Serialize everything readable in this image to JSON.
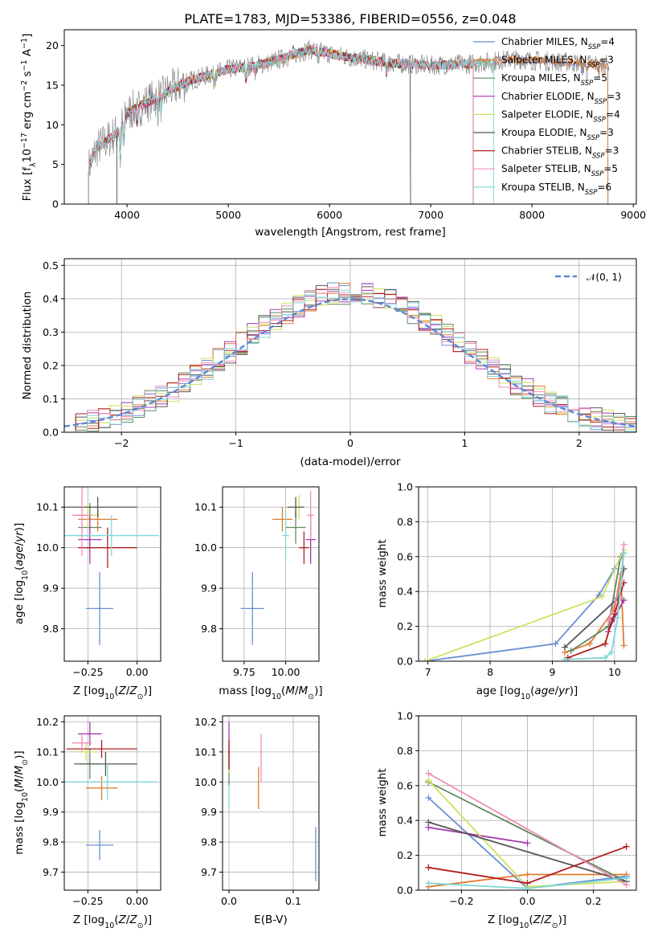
{
  "colors": [
    "#6b8fd6",
    "#e07b2e",
    "#5f8a5f",
    "#a838b0",
    "#cde35e",
    "#565656",
    "#b11e1e",
    "#f08cb8",
    "#7fd6d6"
  ],
  "figure_title": "PLATE=1783, MJD=53386, FIBERID=0556, z=0.048",
  "chart_data": [
    {
      "panel": "spectrum",
      "type": "line",
      "title": "PLATE=1783, MJD=53386, FIBERID=0556, z=0.048",
      "xlabel": "wavelength [Angstrom, rest frame]",
      "ylabel": "Flux [fλ10⁻¹⁷ erg cm⁻² s⁻¹ A⁻¹]",
      "xlim": [
        3380,
        9030
      ],
      "ylim": [
        0,
        22
      ],
      "xticks": [
        "4000",
        "5000",
        "6000",
        "7000",
        "8000",
        "9000"
      ],
      "yticks": [
        "0",
        "5",
        "10",
        "15",
        "20"
      ],
      "legend": [
        "Chabrier MILES, NSSP=4",
        "Salpeter MILES, NSSP=3",
        "Kroupa MILES, NSSP=5",
        "Chabrier ELODIE, NSSP=3",
        "Salpeter ELODIE, NSSP=4",
        "Kroupa ELODIE, NSSP=3",
        "Chabrier STELIB, NSSP=3",
        "Salpeter STELIB, NSSP=5",
        "Kroupa STELIB, NSSP=6"
      ],
      "legend_placement": "right",
      "continuum": {
        "x": [
          3600,
          3700,
          3900,
          4000,
          4300,
          4600,
          5000,
          5400,
          5800,
          6200,
          6600,
          7000,
          7400,
          7800,
          8200,
          8700
        ],
        "y": [
          4,
          7,
          9,
          11.5,
          13.5,
          15.5,
          17,
          17.8,
          19.5,
          18.5,
          17.8,
          17.5,
          17.7,
          18.3,
          18,
          17.6
        ]
      },
      "model_extents": [
        [
          3620,
          8750
        ],
        [
          3620,
          8750
        ],
        [
          3620,
          7420
        ],
        [
          3900,
          6800
        ],
        [
          3900,
          6800
        ],
        [
          3900,
          6800
        ],
        [
          3620,
          7420
        ],
        [
          3620,
          7420
        ],
        [
          3620,
          7620
        ]
      ]
    },
    {
      "panel": "residual-histogram",
      "type": "line",
      "xlabel": "(data-model)/error",
      "ylabel": "Normed distribution",
      "xlim": [
        -2.5,
        2.5
      ],
      "ylim": [
        0,
        0.52
      ],
      "xticks": [
        "−2",
        "−1",
        "0",
        "1",
        "2"
      ],
      "yticks": [
        "0.0",
        "0.1",
        "0.2",
        "0.3",
        "0.4",
        "0.5"
      ],
      "legend": [
        "𝒩(0, 1)"
      ],
      "legend_placement": "top-right",
      "bin_width": 0.1,
      "reference_curve": "normal(0,1) pdf, peak 0.40"
    },
    {
      "panel": "age-vs-Z",
      "type": "scatter",
      "xlabel": "Z [log10(Z/Z⊙)]",
      "ylabel": "age  [log10(age/yr)]",
      "xlim": [
        -0.37,
        0.12
      ],
      "ylim": [
        9.72,
        10.15
      ],
      "xticks": [
        "−0.25",
        "0.00"
      ],
      "yticks": [
        "9.8",
        "9.9",
        "10.0",
        "10.1"
      ],
      "points": [
        {
          "x": -0.19,
          "y": 9.85,
          "xerr": 0.07,
          "yerr": 0.09
        },
        {
          "x": -0.2,
          "y": 10.07,
          "xerr": 0.1,
          "yerr": 0.03
        },
        {
          "x": -0.24,
          "y": 10.05,
          "xerr": 0.06,
          "yerr": 0.06
        },
        {
          "x": -0.24,
          "y": 10.02,
          "xerr": 0.06,
          "yerr": 0.06
        },
        {
          "x": -0.25,
          "y": 10.08,
          "xerr": 0.06,
          "yerr": 0.03
        },
        {
          "x": -0.2,
          "y": 10.1,
          "xerr": 0.2,
          "yerr": 0.025
        },
        {
          "x": -0.15,
          "y": 10.0,
          "xerr": 0.15,
          "yerr": 0.05
        },
        {
          "x": -0.28,
          "y": 10.08,
          "xerr": 0.05,
          "yerr": 0.1
        },
        {
          "x": -0.13,
          "y": 10.03,
          "xerr": 0.24,
          "yerr": 0.05
        }
      ]
    },
    {
      "panel": "age-vs-mass",
      "type": "scatter",
      "xlabel": "mass [log10(M/M⊙)]",
      "ylabel": "",
      "xlim": [
        9.62,
        10.2
      ],
      "ylim": [
        9.72,
        10.15
      ],
      "xticks": [
        "9.75",
        "10.00"
      ],
      "yticks": [
        "9.8",
        "9.9",
        "10.0",
        "10.1"
      ],
      "points": [
        {
          "x": 9.8,
          "y": 9.85,
          "xerr": 0.07,
          "yerr": 0.09
        },
        {
          "x": 9.98,
          "y": 10.07,
          "xerr": 0.06,
          "yerr": 0.03
        },
        {
          "x": 10.06,
          "y": 10.05,
          "xerr": 0.06,
          "yerr": 0.04
        },
        {
          "x": 10.15,
          "y": 10.02,
          "xerr": 0.03,
          "yerr": 0.06
        },
        {
          "x": 10.08,
          "y": 10.1,
          "xerr": 0.03,
          "yerr": 0.03
        },
        {
          "x": 10.06,
          "y": 10.1,
          "xerr": 0.05,
          "yerr": 0.025
        },
        {
          "x": 10.11,
          "y": 10.0,
          "xerr": 0.03,
          "yerr": 0.04
        },
        {
          "x": 10.15,
          "y": 10.08,
          "xerr": 0.02,
          "yerr": 0.06
        },
        {
          "x": 10.0,
          "y": 10.03,
          "xerr": 0.02,
          "yerr": 0.06
        }
      ]
    },
    {
      "panel": "weight-vs-age",
      "type": "line",
      "xlabel": "age  [log10(age/yr)]",
      "ylabel": "mass weight",
      "xlim": [
        6.85,
        10.35
      ],
      "ylim": [
        0,
        1
      ],
      "xticks": [
        "7",
        "8",
        "9",
        "10"
      ],
      "yticks": [
        "0.0",
        "0.2",
        "0.4",
        "0.6",
        "0.8",
        "1.0"
      ],
      "series": [
        {
          "x": [
            6.95,
            9.05,
            9.75,
            10.0,
            10.15
          ],
          "y": [
            0.0,
            0.1,
            0.38,
            0.53,
            0.62
          ]
        },
        {
          "x": [
            9.2,
            9.6,
            10.0,
            10.1,
            10.15
          ],
          "y": [
            0.05,
            0.1,
            0.3,
            0.5,
            0.09
          ]
        },
        {
          "x": [
            9.3,
            9.9,
            10.1
          ],
          "y": [
            0.06,
            0.2,
            0.6
          ]
        },
        {
          "x": [
            9.9,
            10.0,
            10.15
          ],
          "y": [
            0.17,
            0.25,
            0.35
          ]
        },
        {
          "x": [
            6.95,
            9.8,
            10.15
          ],
          "y": [
            0.0,
            0.37,
            0.64
          ]
        },
        {
          "x": [
            9.2,
            10.05,
            10.15
          ],
          "y": [
            0.08,
            0.36,
            0.53
          ]
        },
        {
          "x": [
            9.25,
            9.85,
            9.95,
            10.0,
            10.15
          ],
          "y": [
            0.02,
            0.1,
            0.23,
            0.27,
            0.45
          ]
        },
        {
          "x": [
            9.9,
            10.1,
            10.15
          ],
          "y": [
            0.23,
            0.43,
            0.67
          ]
        },
        {
          "x": [
            9.2,
            9.85,
            9.95,
            10.05,
            10.15
          ],
          "y": [
            0.01,
            0.02,
            0.05,
            0.25,
            0.62
          ]
        }
      ]
    },
    {
      "panel": "mass-vs-Z",
      "type": "scatter",
      "xlabel": "Z [log10(Z/Z⊙)]",
      "ylabel": "mass [log10(M/M⊙)]",
      "xlim": [
        -0.37,
        0.12
      ],
      "ylim": [
        9.64,
        10.22
      ],
      "xticks": [
        "−0.25",
        "0.00"
      ],
      "yticks": [
        "9.7",
        "9.8",
        "9.9",
        "10.0",
        "10.1",
        "10.2"
      ],
      "points": [
        {
          "x": -0.19,
          "y": 9.79,
          "xerr": 0.07,
          "yerr": 0.05
        },
        {
          "x": -0.18,
          "y": 9.98,
          "xerr": 0.08,
          "yerr": 0.04
        },
        {
          "x": -0.24,
          "y": 10.06,
          "xerr": 0.05,
          "yerr": 0.05
        },
        {
          "x": -0.24,
          "y": 10.16,
          "xerr": 0.06,
          "yerr": 0.04
        },
        {
          "x": -0.26,
          "y": 10.1,
          "xerr": 0.05,
          "yerr": 0.03
        },
        {
          "x": -0.16,
          "y": 10.06,
          "xerr": 0.16,
          "yerr": 0.04
        },
        {
          "x": -0.18,
          "y": 10.11,
          "xerr": 0.18,
          "yerr": 0.03
        },
        {
          "x": -0.28,
          "y": 10.13,
          "xerr": 0.05,
          "yerr": 0.03
        },
        {
          "x": -0.15,
          "y": 10.0,
          "xerr": 0.25,
          "yerr": 0.06
        }
      ]
    },
    {
      "panel": "mass-vs-EBV",
      "type": "scatter",
      "xlabel": "E(B-V)",
      "ylabel": "",
      "xlim": [
        -0.01,
        0.14
      ],
      "ylim": [
        9.64,
        10.22
      ],
      "xticks": [
        "0.0",
        "0.1"
      ],
      "yticks": [
        "9.7",
        "9.8",
        "9.9",
        "10.0",
        "10.1",
        "10.2"
      ],
      "points": [
        {
          "x": 0.135,
          "y": 9.76,
          "xerr": 0,
          "yerr": 0.09
        },
        {
          "x": 0.046,
          "y": 9.98,
          "xerr": 0,
          "yerr": 0.07
        },
        {
          "x": 0.0,
          "y": 10.03,
          "xerr": 0,
          "yerr": 0.04
        },
        {
          "x": 0.0,
          "y": 10.14,
          "xerr": 0,
          "yerr": 0.06
        },
        {
          "x": 0.0,
          "y": 10.06,
          "xerr": 0,
          "yerr": 0.03
        },
        {
          "x": 0.0,
          "y": 10.08,
          "xerr": 0,
          "yerr": 0.03
        },
        {
          "x": 0.0,
          "y": 10.09,
          "xerr": 0,
          "yerr": 0.05
        },
        {
          "x": 0.05,
          "y": 10.08,
          "xerr": 0,
          "yerr": 0.08
        },
        {
          "x": 0.0,
          "y": 9.95,
          "xerr": 0,
          "yerr": 0.04
        }
      ]
    },
    {
      "panel": "weight-vs-Z",
      "type": "line",
      "xlabel": "Z [log10(Z/Z⊙)]",
      "ylabel": "mass weight",
      "xlim": [
        -0.33,
        0.33
      ],
      "ylim": [
        0,
        1
      ],
      "xticks": [
        "−0.2",
        "0.0",
        "0.2"
      ],
      "yticks": [
        "0.0",
        "0.2",
        "0.4",
        "0.6",
        "0.8",
        "1.0"
      ],
      "series": [
        {
          "x": [
            -0.3,
            0.0,
            0.3
          ],
          "y": [
            0.53,
            0.01,
            0.08
          ]
        },
        {
          "x": [
            -0.3,
            0.0,
            0.3
          ],
          "y": [
            0.02,
            0.09,
            0.09
          ]
        },
        {
          "x": [
            -0.3,
            0.3
          ],
          "y": [
            0.62,
            0.05
          ]
        },
        {
          "x": [
            -0.3,
            0.0
          ],
          "y": [
            0.36,
            0.27
          ]
        },
        {
          "x": [
            -0.3,
            0.0,
            0.3
          ],
          "y": [
            0.63,
            0.02,
            0.05
          ]
        },
        {
          "x": [
            -0.3,
            0.3
          ],
          "y": [
            0.39,
            0.05
          ]
        },
        {
          "x": [
            -0.3,
            0.0,
            0.3
          ],
          "y": [
            0.13,
            0.04,
            0.25
          ]
        },
        {
          "x": [
            -0.3,
            0.3
          ],
          "y": [
            0.67,
            0.03
          ]
        },
        {
          "x": [
            -0.3,
            0.0,
            0.3
          ],
          "y": [
            0.04,
            0.01,
            0.07
          ]
        }
      ]
    }
  ]
}
